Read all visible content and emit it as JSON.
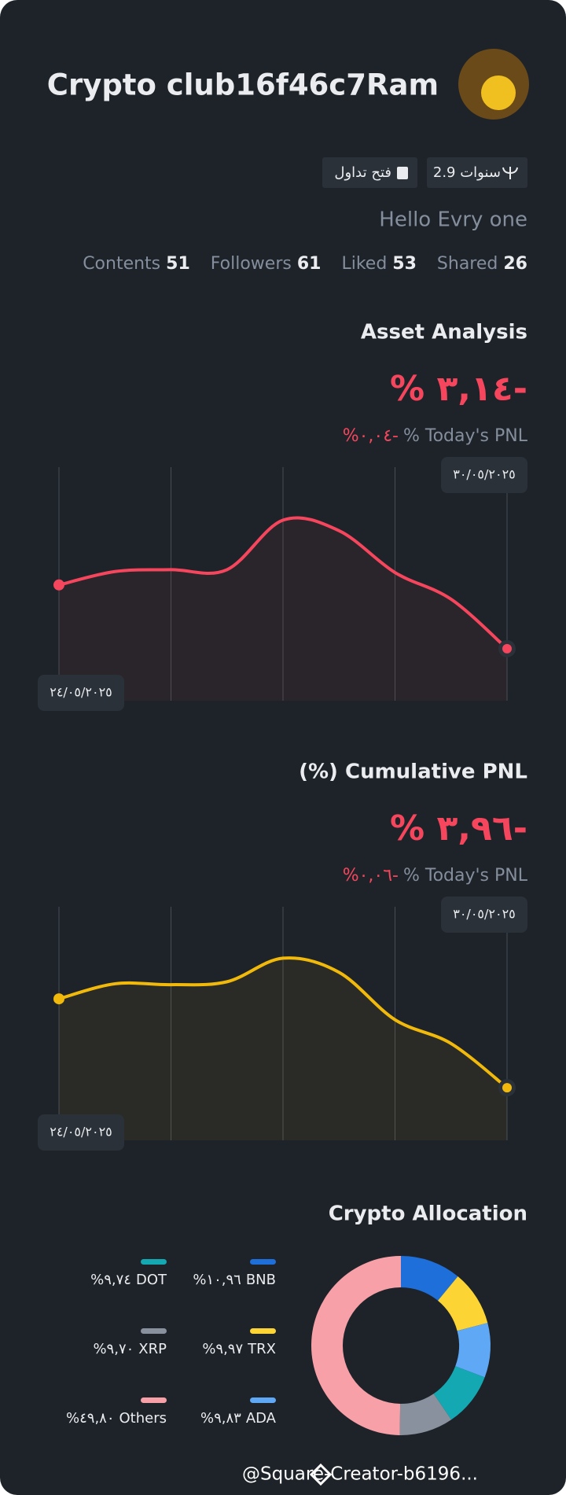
{
  "profile": {
    "name": "Crypto club16f46c7Ram",
    "tags": [
      "2.9 سنوات",
      "فتح تداول"
    ],
    "bio": "Hello Evry one",
    "stats": [
      {
        "label": "Contents",
        "value": "51"
      },
      {
        "label": "Followers",
        "value": "61"
      },
      {
        "label": "Liked",
        "value": "53"
      },
      {
        "label": "Shared",
        "value": "26"
      }
    ]
  },
  "charts": [
    {
      "type": "line",
      "title": "Asset Analysis",
      "headline": "% ٣,١٤-",
      "today_value": "%٠,٠٤-",
      "today_label": "% Today's PNL",
      "start_date": "٢٤/٠٥/٢٠٢٥",
      "end_date": "٣٠/٠٥/٢٠٢٥",
      "color": "#f6465d",
      "values": [
        0,
        0.66,
        0.75,
        0.75,
        3.19,
        2.67,
        0.61,
        -0.7,
        -3.14
      ],
      "ylim": [
        -5.7,
        5.8
      ]
    },
    {
      "type": "line",
      "title": "(%) Cumulative PNL",
      "headline": "% ٣,٩٦-",
      "today_value": "%٠,٠٦-",
      "today_label": "% Today's PNL",
      "start_date": "٢٤/٠٥/٢٠٢٥",
      "end_date": "٣٠/٠٥/٢٠٢٥",
      "color": "#f0b90b",
      "values": [
        0,
        0.67,
        0.63,
        0.76,
        1.81,
        1.18,
        -0.93,
        -1.99,
        -3.96
      ],
      "ylim": [
        -6.3,
        4.1
      ]
    },
    {
      "type": "pie",
      "title": "Crypto Allocation",
      "series": [
        {
          "name": "BNB",
          "color": "#1e6fd9",
          "value": 10.96,
          "value_label": "%١٠,٩٦"
        },
        {
          "name": "TRX",
          "color": "#fcd535",
          "value": 9.97,
          "value_label": "%٩,٩٧"
        },
        {
          "name": "ADA",
          "color": "#5ea8f5",
          "value": 9.83,
          "value_label": "%٩,٨٣"
        },
        {
          "name": "DOT",
          "color": "#14a8b3",
          "value": 9.74,
          "value_label": "%٩,٧٤"
        },
        {
          "name": "XRP",
          "color": "#8a919e",
          "value": 9.7,
          "value_label": "%٩,٧٠"
        },
        {
          "name": "Others",
          "color": "#f7a0a8",
          "value": 49.8,
          "value_label": "%٤٩,٨٠"
        }
      ]
    }
  ],
  "footer": "@Square-Creator-b6196..."
}
